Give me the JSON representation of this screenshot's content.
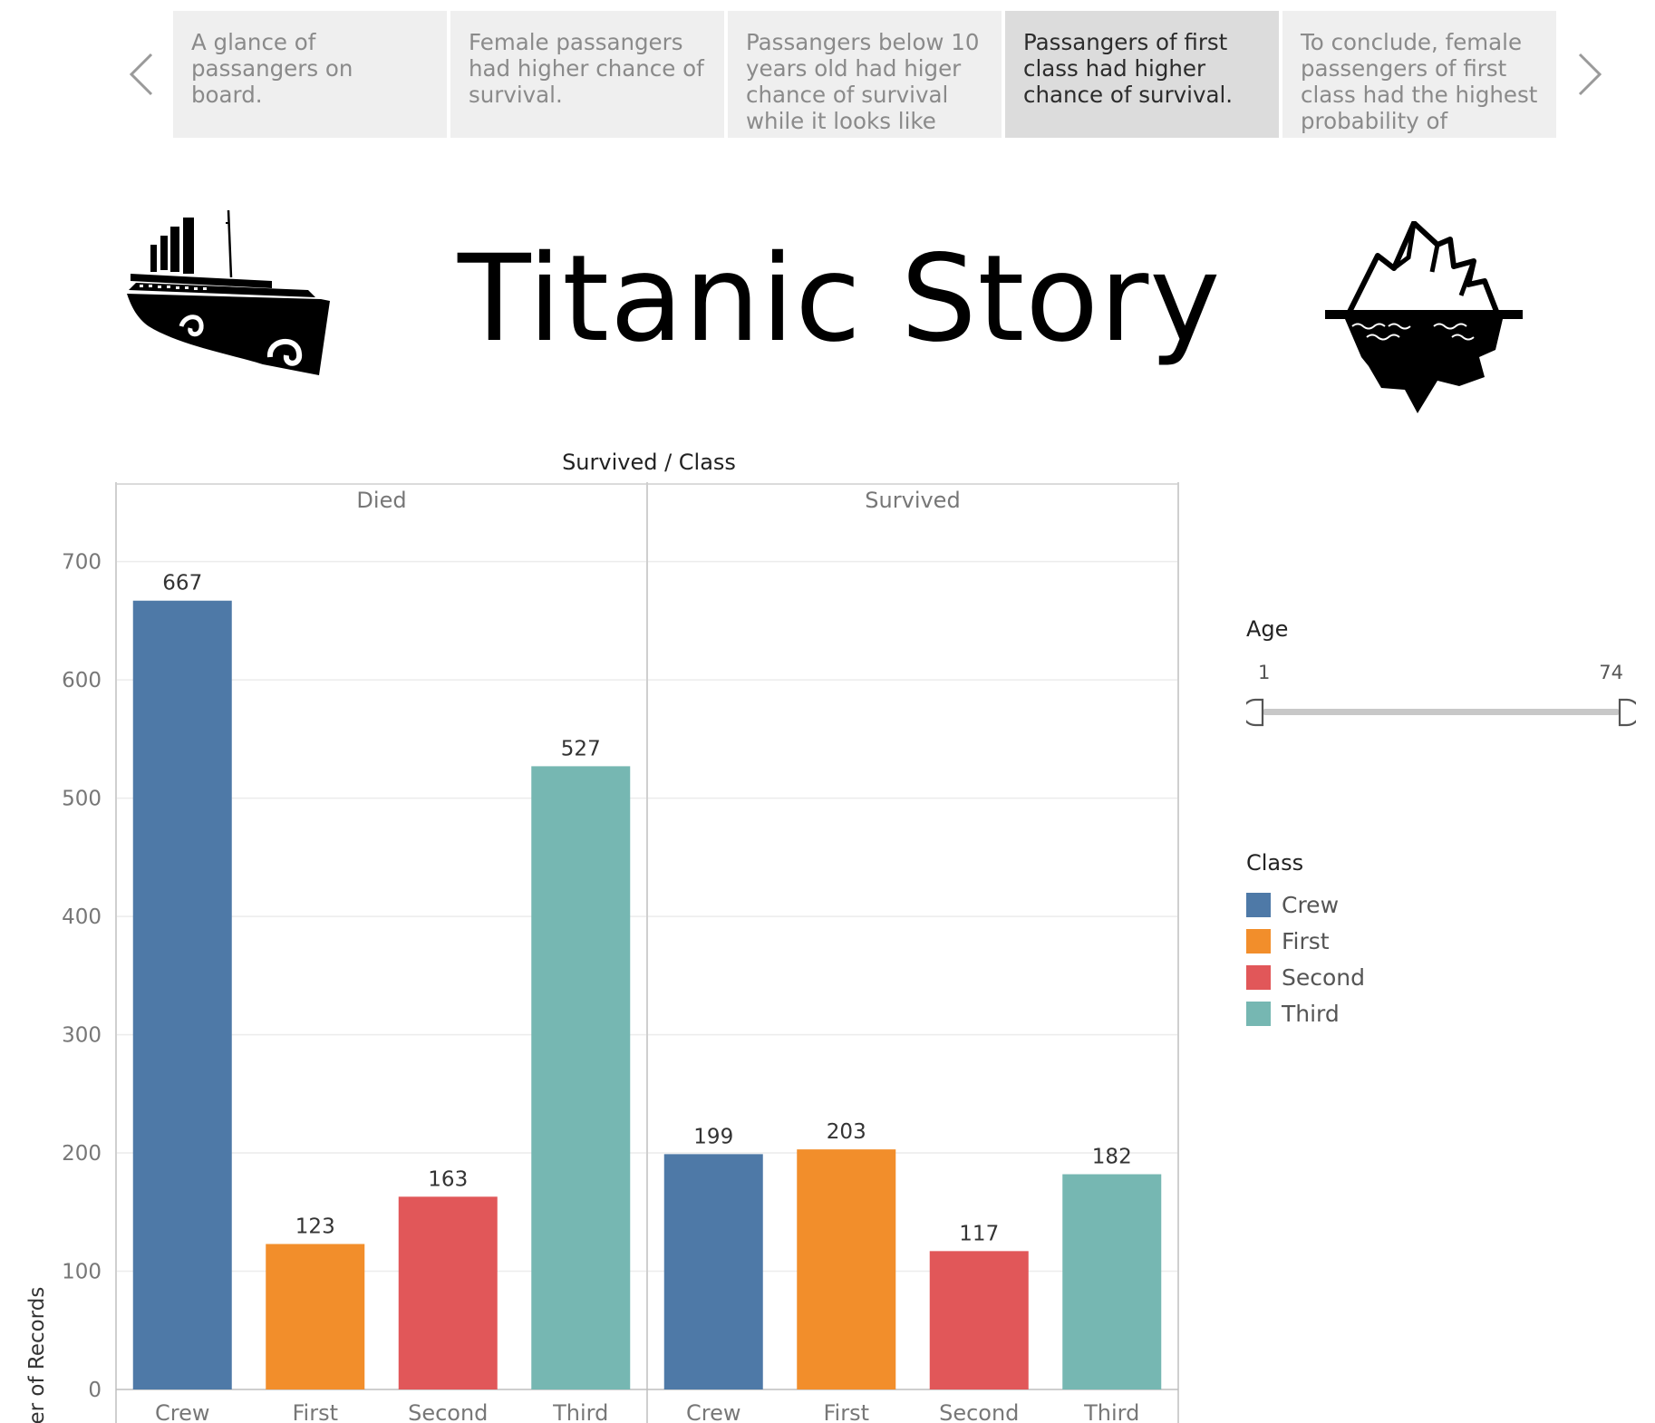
{
  "story": {
    "points": [
      {
        "caption": "A glance of passangers on board.",
        "active": false
      },
      {
        "caption": "Female passangers had higher chance of survival.",
        "active": false
      },
      {
        "caption": "Passangers below 10 years old had higer chance of survival while it looks like age",
        "active": false
      },
      {
        "caption": "Passangers of first class had higher chance of survival.",
        "active": true
      },
      {
        "caption": "To conclude, female passengers of first class had the highest probability of",
        "active": false
      }
    ]
  },
  "header": {
    "title": "Titanic Story",
    "left_icon": "titanic-ship-icon",
    "right_icon": "iceberg-icon"
  },
  "filters": {
    "age": {
      "title": "Age",
      "min": 1,
      "max": 74,
      "selected_min": 1,
      "selected_max": 74
    }
  },
  "legend": {
    "title": "Class",
    "items": [
      {
        "label": "Crew",
        "color": "#4e79a7"
      },
      {
        "label": "First",
        "color": "#f28e2b"
      },
      {
        "label": "Second",
        "color": "#e15759"
      },
      {
        "label": "Third",
        "color": "#76b7b2"
      }
    ]
  },
  "chart_data": {
    "type": "bar",
    "header": "Survived / Class",
    "ylabel": "Number of Records",
    "ylim": [
      0,
      700
    ],
    "yticks": [
      0,
      100,
      200,
      300,
      400,
      500,
      600,
      700
    ],
    "grid": true,
    "categories": [
      "Crew",
      "First",
      "Second",
      "Third"
    ],
    "panels": [
      {
        "name": "Died",
        "values": [
          667,
          123,
          163,
          527
        ]
      },
      {
        "name": "Survived",
        "values": [
          199,
          203,
          117,
          182
        ]
      }
    ],
    "colors": [
      "#4e79a7",
      "#f28e2b",
      "#e15759",
      "#76b7b2"
    ]
  }
}
